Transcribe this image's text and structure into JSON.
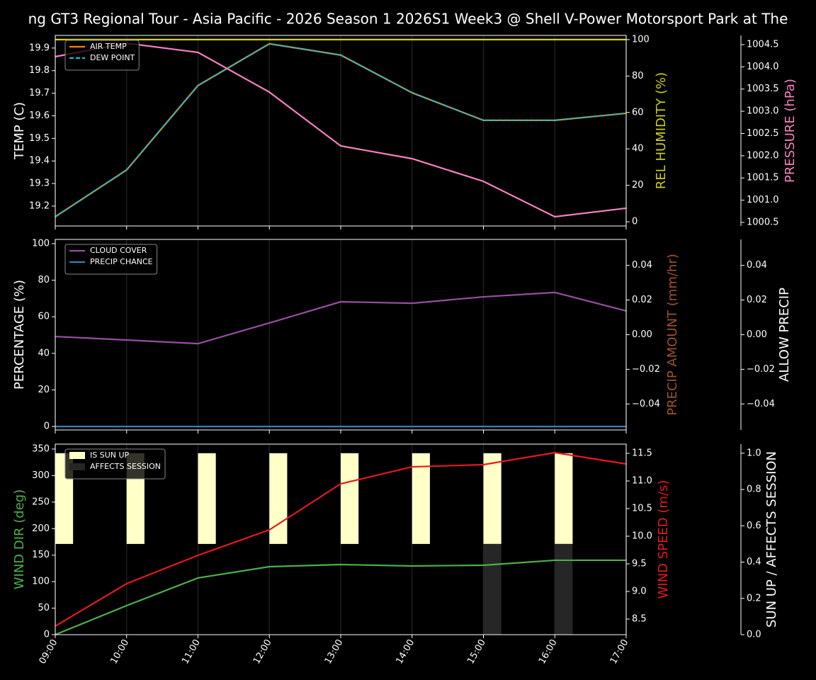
{
  "chart_data": [
    {
      "type": "line",
      "title": "ng GT3 Regional Tour - Asia Pacific - 2026 Season 1 2026S1 Week3 @ Shell V-Power Motorsport Park at The",
      "ylabel": "TEMP (C)",
      "ylabel_color": "#ffffff",
      "ylim": [
        19.112,
        19.956
      ],
      "yticks": [
        19.2,
        19.3,
        19.4,
        19.5,
        19.6,
        19.7,
        19.8,
        19.9
      ],
      "y2label": "REL HUMIDITY (%)",
      "y2label_color": "#cccc1a",
      "y2lim": [
        -2.3,
        102.3
      ],
      "y2ticks": [
        0,
        20,
        40,
        60,
        80,
        100
      ],
      "y3label": "PRESSURE (hPa)",
      "y3label_color": "#f781bf",
      "y3lim": [
        1000.42,
        1004.707
      ],
      "y3ticks": [
        1000.5,
        {
          "value": 1001,
          "label": "1001.0"
        },
        1001.5,
        {
          "value": 1002,
          "label": "1002.0"
        },
        1002.5,
        {
          "value": 1003,
          "label": "1003.0"
        },
        1003.5,
        {
          "value": 1004,
          "label": "1004.0"
        },
        1004.5
      ],
      "legend": "upper left",
      "series": [
        {
          "name": "AIR TEMP",
          "type": "line",
          "color": "#ff7f0e",
          "axis": "y",
          "values": [
            19.153,
            19.36,
            19.734,
            19.919,
            19.869,
            19.702,
            19.58,
            19.58,
            19.611
          ]
        },
        {
          "name": "DEW POINT",
          "type": "line",
          "color": "#17becf",
          "linestyle": "dashed",
          "axis": "y",
          "values": [
            19.153,
            19.36,
            19.734,
            19.919,
            19.869,
            19.702,
            19.58,
            19.58,
            19.611
          ]
        },
        {
          "type": "line",
          "color": "#d4d41f",
          "axis": "y2",
          "values": [
            100,
            100,
            100,
            100,
            100,
            100,
            100,
            100,
            100
          ]
        },
        {
          "type": "line",
          "color": "#f781bf",
          "axis": "y3",
          "values": [
            1004.229,
            1004.532,
            1004.325,
            1003.432,
            1002.221,
            1001.934,
            1001.424,
            1000.627,
            1000.819
          ]
        }
      ]
    },
    {
      "type": "line",
      "ylabel": "PERCENTAGE (%)",
      "ylabel_color": "#ffffff",
      "ylim": [
        -1.9,
        102.3
      ],
      "yticks": [
        0,
        20,
        40,
        60,
        80,
        100
      ],
      "y2label": "PRECIP AMOUNT (mm/hr)",
      "y2label_color": "#a0522d",
      "y2lim": [
        -0.055,
        0.055
      ],
      "y2ticks": [
        {
          "value": -0.04,
          "label": "−0.04"
        },
        {
          "value": -0.02,
          "label": "−0.02"
        },
        {
          "value": 0,
          "label": "0.00"
        },
        0.02,
        0.04
      ],
      "y3label": "ALLOW PRECIP",
      "y3label_color": "#ffffff",
      "y3lim": [
        -0.055,
        0.055
      ],
      "y3ticks": [
        {
          "value": -0.04,
          "label": "−0.04"
        },
        {
          "value": -0.02,
          "label": "−0.02"
        },
        {
          "value": 0,
          "label": "0.00"
        },
        0.02,
        0.04
      ],
      "legend": "upper left",
      "series": [
        {
          "name": "CLOUD COVER",
          "type": "line",
          "color": "#984ea3",
          "axis": "y",
          "values": [
            49.2,
            47.3,
            45.3,
            56.6,
            68.2,
            67.4,
            70.9,
            73.3,
            63.2
          ]
        },
        {
          "name": "PRECIP CHANCE",
          "type": "line",
          "color": "#377eb8",
          "axis": "y",
          "values": [
            0,
            0,
            0,
            0,
            0,
            0,
            0,
            0,
            0
          ]
        }
      ]
    },
    {
      "type": "combo",
      "categories": [
        "09:00",
        "10:00",
        "11:00",
        "12:00",
        "13:00",
        "14:00",
        "15:00",
        "16:00",
        "17:00"
      ],
      "ylabel": "WIND DIR (deg)",
      "ylabel_color": "#4daf4a",
      "ylim": [
        0,
        359.3
      ],
      "yticks": [
        0,
        50,
        100,
        150,
        200,
        250,
        300,
        350
      ],
      "y2label": "WIND SPEED (m/s)",
      "y2label_color": "#e41a1c",
      "y2lim": [
        8.218,
        11.667
      ],
      "y2ticks": [
        8.5,
        {
          "value": 9,
          "label": "9.0"
        },
        9.5,
        {
          "value": 10,
          "label": "10.0"
        },
        10.5,
        {
          "value": 11,
          "label": "11.0"
        },
        11.5
      ],
      "y3label": "SUN UP / AFFECTS SESSION",
      "y3label_color": "#ffffff",
      "y3lim": [
        0,
        1.05
      ],
      "y3ticks": [
        {
          "value": 0,
          "label": "0.0"
        },
        0.2,
        0.4,
        0.6,
        0.8,
        {
          "value": 1,
          "label": "1.0"
        }
      ],
      "legend": "upper left",
      "series": [
        {
          "name": "IS SUN UP",
          "type": "bar",
          "color": "#ffffc8",
          "axis": "y3",
          "values": [
            1,
            1,
            1,
            1,
            1,
            1,
            1,
            1,
            null
          ]
        },
        {
          "name": "AFFECTS SESSION",
          "type": "bar",
          "color": "#262626",
          "axis": "y3",
          "values": [
            0,
            0,
            0,
            0,
            0,
            0,
            1,
            1,
            null
          ]
        },
        {
          "type": "line",
          "color": "#4daf4a",
          "axis": "y",
          "values": [
            0,
            54.8,
            106.9,
            128.2,
            132.2,
            129.6,
            130.9,
            140.3,
            140.3
          ]
        },
        {
          "type": "line",
          "color": "#e41a1c",
          "axis": "y2",
          "values": [
            8.372,
            9.141,
            9.654,
            10.115,
            10.949,
            11.256,
            11.295,
            11.513,
            11.308
          ]
        }
      ]
    }
  ]
}
